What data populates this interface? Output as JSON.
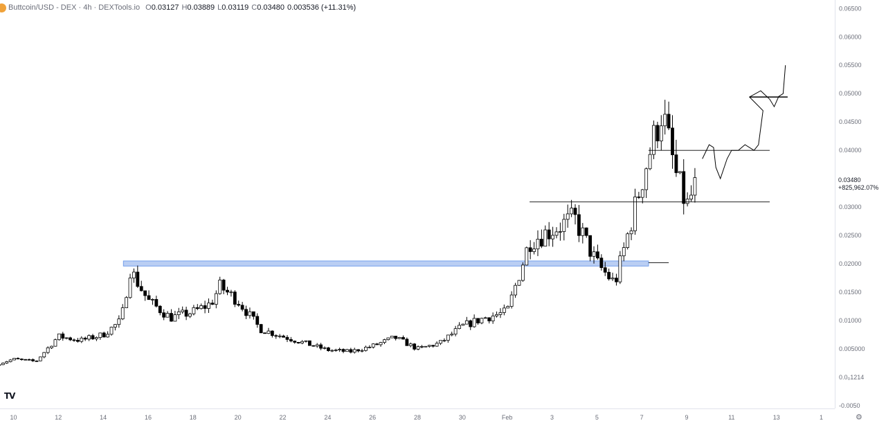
{
  "legend": {
    "title": "Buttcoin/USD - DEX · 4h · DEXTools.io",
    "open_key": "O",
    "open": "0.03127",
    "high_key": "H",
    "high": "0.03889",
    "low_key": "L",
    "low": "0.03119",
    "close_key": "C",
    "close": "0.03480",
    "change": "0.003536 (+11.31%)"
  },
  "last_price": {
    "value": "0.03480",
    "change": "+825,962.07%"
  },
  "icons": {
    "coin": "coin-icon",
    "logo": "tradingview-logo-icon",
    "settings": "settings-icon"
  },
  "logo_text": "TV",
  "colors": {
    "candle_up_fill": "#ffffff",
    "candle_down_fill": "#000000",
    "candle_outline": "#000000",
    "zone_fill": "#aec6f2",
    "zone_stroke": "#5b8fe8",
    "line": "#000000"
  },
  "chart_data": {
    "type": "candlestick",
    "timeframe": "4h",
    "y_ticks": [
      {
        "value": 0.065,
        "label": "0.06500"
      },
      {
        "value": 0.06,
        "label": "0.06000"
      },
      {
        "value": 0.055,
        "label": "0.05500"
      },
      {
        "value": 0.05,
        "label": "0.05000"
      },
      {
        "value": 0.045,
        "label": "0.04500"
      },
      {
        "value": 0.04,
        "label": "0.04000"
      },
      {
        "value": 0.025,
        "label": "0.02500"
      },
      {
        "value": 0.02,
        "label": "0.02000"
      },
      {
        "value": 0.015,
        "label": "0.01500"
      },
      {
        "value": 0.01,
        "label": "0.01000"
      },
      {
        "value": 0.005,
        "label": "0.005000"
      },
      {
        "value": 0.0,
        "label": "0.0₀1214"
      },
      {
        "value": -0.005,
        "label": "-0.0050"
      }
    ],
    "y_ticks_extra": [
      {
        "value": 0.03,
        "label": "0.03000"
      }
    ],
    "ylim": [
      -0.0055,
      0.0665
    ],
    "x_ticks": [
      {
        "day": 10,
        "label": "10"
      },
      {
        "day": 12,
        "label": "12"
      },
      {
        "day": 14,
        "label": "14"
      },
      {
        "day": 16,
        "label": "16"
      },
      {
        "day": 18,
        "label": "18"
      },
      {
        "day": 20,
        "label": "20"
      },
      {
        "day": 22,
        "label": "22"
      },
      {
        "day": 24,
        "label": "24"
      },
      {
        "day": 26,
        "label": "26"
      },
      {
        "day": 28,
        "label": "28"
      },
      {
        "day": 30,
        "label": "30"
      },
      {
        "day": 32,
        "label": "Feb"
      },
      {
        "day": 34,
        "label": "3"
      },
      {
        "day": 36,
        "label": "5"
      },
      {
        "day": 38,
        "label": "7"
      },
      {
        "day": 40,
        "label": "9"
      },
      {
        "day": 42,
        "label": "11"
      },
      {
        "day": 44,
        "label": "13"
      },
      {
        "day": 46,
        "label": "1"
      }
    ],
    "xlim": [
      9.4,
      46.6
    ],
    "anchors": [
      [
        9.2,
        0.0022
      ],
      [
        10.0,
        0.0032
      ],
      [
        11.0,
        0.0028
      ],
      [
        12.0,
        0.0072
      ],
      [
        13.0,
        0.0065
      ],
      [
        14.0,
        0.0075
      ],
      [
        14.8,
        0.01
      ],
      [
        15.2,
        0.019
      ],
      [
        16.0,
        0.0135
      ],
      [
        17.0,
        0.0105
      ],
      [
        18.0,
        0.0115
      ],
      [
        18.8,
        0.013
      ],
      [
        19.2,
        0.016
      ],
      [
        20.0,
        0.0135
      ],
      [
        21.0,
        0.0085
      ],
      [
        22.0,
        0.0072
      ],
      [
        23.0,
        0.006
      ],
      [
        24.0,
        0.0048
      ],
      [
        25.0,
        0.0045
      ],
      [
        26.0,
        0.0055
      ],
      [
        27.0,
        0.007
      ],
      [
        28.0,
        0.005
      ],
      [
        29.0,
        0.006
      ],
      [
        30.0,
        0.009
      ],
      [
        31.0,
        0.0105
      ],
      [
        32.0,
        0.0115
      ],
      [
        33.0,
        0.024
      ],
      [
        34.0,
        0.026
      ],
      [
        35.0,
        0.028
      ],
      [
        36.0,
        0.02
      ],
      [
        36.8,
        0.0165
      ],
      [
        37.5,
        0.027
      ],
      [
        38.3,
        0.039
      ],
      [
        38.9,
        0.047
      ],
      [
        39.5,
        0.036
      ],
      [
        40.0,
        0.03
      ],
      [
        40.5,
        0.0348
      ]
    ],
    "zone": {
      "day_start": 14.9,
      "day_end": 38.3,
      "low": 0.0196,
      "high": 0.0205
    },
    "hlines": [
      {
        "day_start": 38.3,
        "day_end": 39.2,
        "value": 0.0202
      },
      {
        "day_start": 33.0,
        "day_end": 43.7,
        "value": 0.0309
      },
      {
        "day_start": 38.3,
        "day_end": 43.7,
        "value": 0.04
      },
      {
        "day_start": 42.8,
        "day_end": 44.5,
        "value": 0.0494
      }
    ],
    "drawing": [
      [
        40.7,
        0.0385
      ],
      [
        41.0,
        0.041
      ],
      [
        41.2,
        0.0405
      ],
      [
        41.3,
        0.037
      ],
      [
        41.5,
        0.035
      ],
      [
        41.8,
        0.0385
      ],
      [
        42.0,
        0.04
      ],
      [
        42.3,
        0.04
      ],
      [
        42.6,
        0.041
      ],
      [
        43.0,
        0.04
      ],
      [
        43.2,
        0.041
      ],
      [
        43.4,
        0.047
      ],
      [
        42.8,
        0.0494
      ],
      [
        43.3,
        0.0505
      ],
      [
        43.7,
        0.049
      ],
      [
        43.9,
        0.0477
      ],
      [
        44.1,
        0.0495
      ],
      [
        44.3,
        0.05
      ],
      [
        44.4,
        0.055
      ]
    ]
  }
}
